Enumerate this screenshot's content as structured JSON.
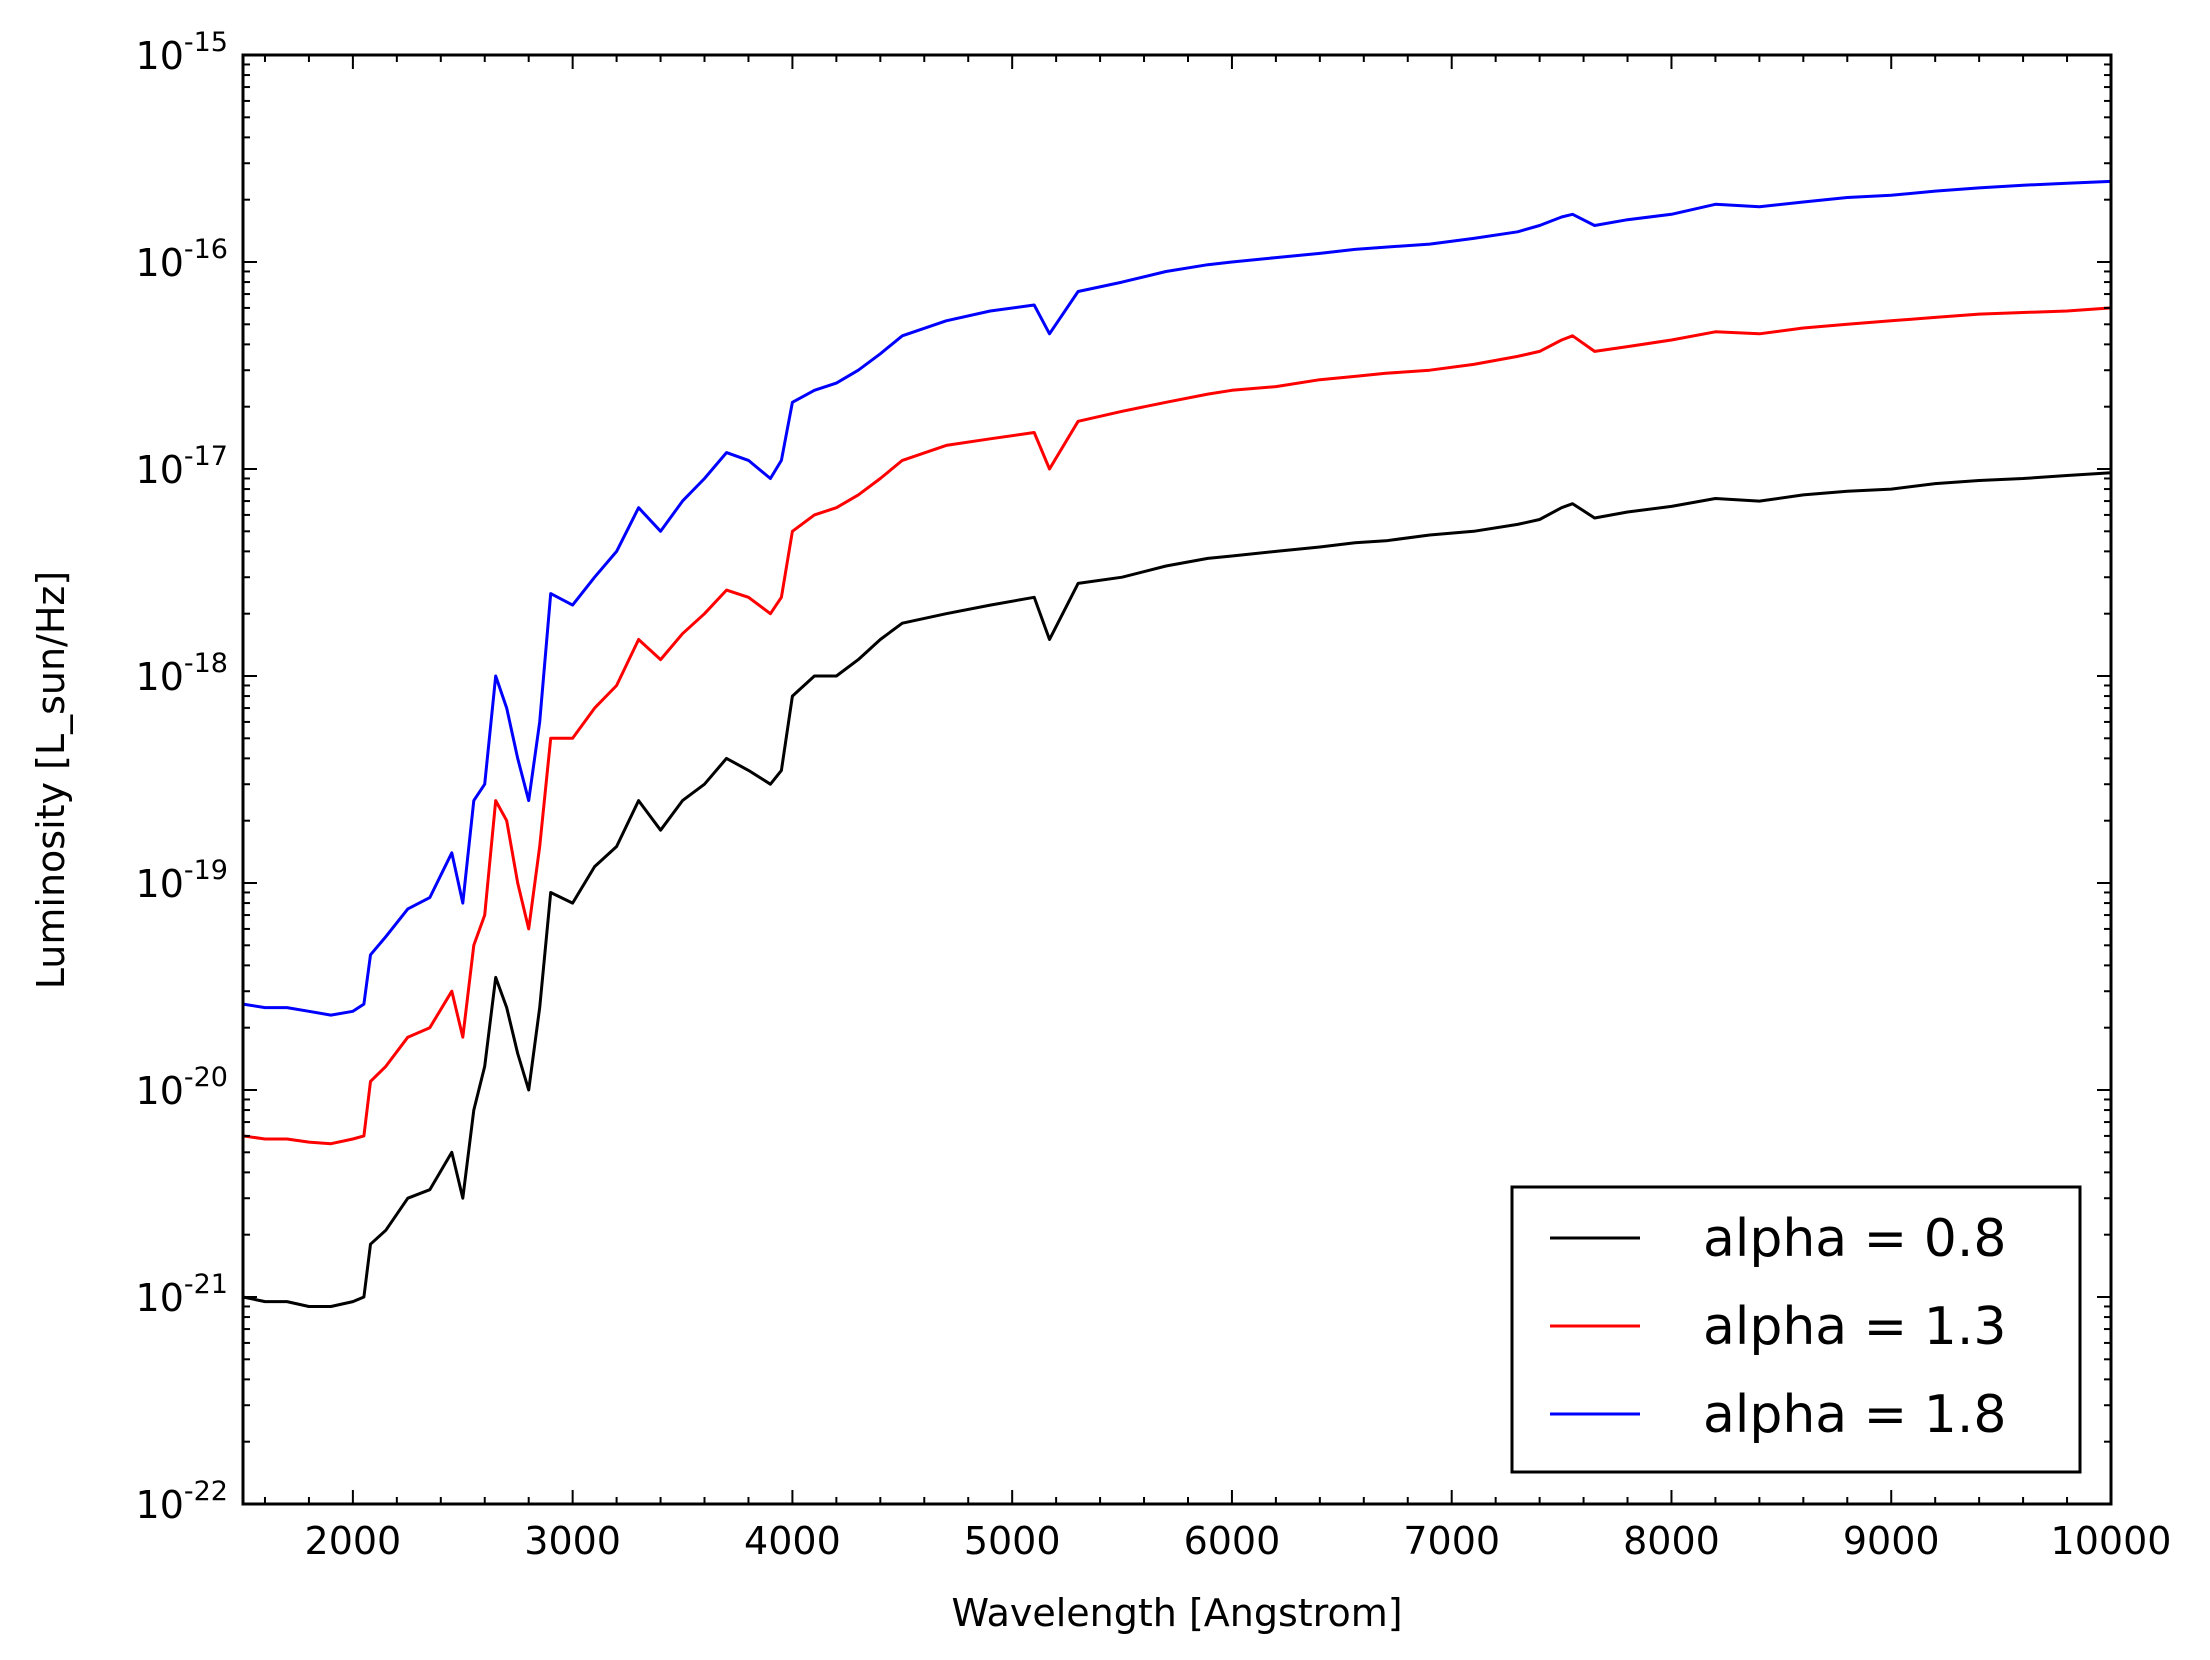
{
  "chart_data": {
    "type": "line",
    "xlabel": "Wavelength [Angstrom]",
    "ylabel": "Luminosity [L_sun/Hz]",
    "xlim": [
      1500,
      10000
    ],
    "ylim": [
      1e-22,
      1e-15
    ],
    "yscale": "log",
    "grid": false,
    "legend_position": "bottom-right",
    "x_ticks": [
      "2000",
      "3000",
      "4000",
      "5000",
      "6000",
      "7000",
      "8000",
      "9000",
      "10000"
    ],
    "y_ticks": [
      {
        "base": "10",
        "exp": "-22"
      },
      {
        "base": "10",
        "exp": "-21"
      },
      {
        "base": "10",
        "exp": "-20"
      },
      {
        "base": "10",
        "exp": "-19"
      },
      {
        "base": "10",
        "exp": "-18"
      },
      {
        "base": "10",
        "exp": "-17"
      },
      {
        "base": "10",
        "exp": "-16"
      },
      {
        "base": "10",
        "exp": "-15"
      }
    ],
    "series": [
      {
        "name": "alpha = 0.8",
        "color": "#000000",
        "x": [
          1500,
          1600,
          1700,
          1800,
          1900,
          2000,
          2050,
          2080,
          2150,
          2250,
          2350,
          2450,
          2500,
          2550,
          2600,
          2650,
          2700,
          2750,
          2800,
          2850,
          2900,
          3000,
          3100,
          3200,
          3300,
          3400,
          3500,
          3600,
          3700,
          3800,
          3900,
          3950,
          4000,
          4100,
          4200,
          4300,
          4400,
          4500,
          4700,
          4900,
          5100,
          5170,
          5300,
          5500,
          5700,
          5890,
          6000,
          6200,
          6400,
          6560,
          6700,
          6900,
          7100,
          7300,
          7400,
          7500,
          7550,
          7650,
          7800,
          8000,
          8200,
          8400,
          8600,
          8800,
          9000,
          9200,
          9400,
          9600,
          9800,
          10000
        ],
        "y": [
          1e-21,
          9.5e-22,
          9.5e-22,
          9e-22,
          9e-22,
          9.5e-22,
          1e-21,
          1.8e-21,
          2.1e-21,
          3e-21,
          3.3e-21,
          5e-21,
          3e-21,
          8e-21,
          1.3e-20,
          3.5e-20,
          2.5e-20,
          1.5e-20,
          1e-20,
          2.5e-20,
          9e-20,
          8e-20,
          1.2e-19,
          1.5e-19,
          2.5e-19,
          1.8e-19,
          2.5e-19,
          3e-19,
          4e-19,
          3.5e-19,
          3e-19,
          3.5e-19,
          8e-19,
          1e-18,
          1e-18,
          1.2e-18,
          1.5e-18,
          1.8e-18,
          2e-18,
          2.2e-18,
          2.4e-18,
          1.5e-18,
          2.8e-18,
          3e-18,
          3.4e-18,
          3.7e-18,
          3.8e-18,
          4e-18,
          4.2e-18,
          4.4e-18,
          4.5e-18,
          4.8e-18,
          5e-18,
          5.4e-18,
          5.7e-18,
          6.5e-18,
          6.8e-18,
          5.8e-18,
          6.2e-18,
          6.6e-18,
          7.2e-18,
          7e-18,
          7.5e-18,
          7.8e-18,
          8e-18,
          8.5e-18,
          8.8e-18,
          9e-18,
          9.3e-18,
          9.6e-18
        ]
      },
      {
        "name": "alpha = 1.3",
        "color": "#ff0000",
        "x": [
          1500,
          1600,
          1700,
          1800,
          1900,
          2000,
          2050,
          2080,
          2150,
          2250,
          2350,
          2450,
          2500,
          2550,
          2600,
          2650,
          2700,
          2750,
          2800,
          2850,
          2900,
          3000,
          3100,
          3200,
          3300,
          3400,
          3500,
          3600,
          3700,
          3800,
          3900,
          3950,
          4000,
          4100,
          4200,
          4300,
          4400,
          4500,
          4700,
          4900,
          5100,
          5170,
          5300,
          5500,
          5700,
          5890,
          6000,
          6200,
          6400,
          6560,
          6700,
          6900,
          7100,
          7300,
          7400,
          7500,
          7550,
          7650,
          7800,
          8000,
          8200,
          8400,
          8600,
          8800,
          9000,
          9200,
          9400,
          9600,
          9800,
          10000
        ],
        "y": [
          6e-21,
          5.8e-21,
          5.8e-21,
          5.6e-21,
          5.5e-21,
          5.8e-21,
          6e-21,
          1.1e-20,
          1.3e-20,
          1.8e-20,
          2e-20,
          3e-20,
          1.8e-20,
          5e-20,
          7e-20,
          2.5e-19,
          2e-19,
          1e-19,
          6e-20,
          1.5e-19,
          5e-19,
          5e-19,
          7e-19,
          9e-19,
          1.5e-18,
          1.2e-18,
          1.6e-18,
          2e-18,
          2.6e-18,
          2.4e-18,
          2e-18,
          2.4e-18,
          5e-18,
          6e-18,
          6.5e-18,
          7.5e-18,
          9e-18,
          1.1e-17,
          1.3e-17,
          1.4e-17,
          1.5e-17,
          1e-17,
          1.7e-17,
          1.9e-17,
          2.1e-17,
          2.3e-17,
          2.4e-17,
          2.5e-17,
          2.7e-17,
          2.8e-17,
          2.9e-17,
          3e-17,
          3.2e-17,
          3.5e-17,
          3.7e-17,
          4.2e-17,
          4.4e-17,
          3.7e-17,
          3.9e-17,
          4.2e-17,
          4.6e-17,
          4.5e-17,
          4.8e-17,
          5e-17,
          5.2e-17,
          5.4e-17,
          5.6e-17,
          5.7e-17,
          5.8e-17,
          6e-17
        ]
      },
      {
        "name": "alpha = 1.8",
        "color": "#0000ff",
        "x": [
          1500,
          1600,
          1700,
          1800,
          1900,
          2000,
          2050,
          2080,
          2150,
          2250,
          2350,
          2450,
          2500,
          2550,
          2600,
          2650,
          2700,
          2750,
          2800,
          2850,
          2900,
          3000,
          3100,
          3200,
          3300,
          3400,
          3500,
          3600,
          3700,
          3800,
          3900,
          3950,
          4000,
          4100,
          4200,
          4300,
          4400,
          4500,
          4700,
          4900,
          5100,
          5170,
          5300,
          5500,
          5700,
          5890,
          6000,
          6200,
          6400,
          6560,
          6700,
          6900,
          7100,
          7300,
          7400,
          7500,
          7550,
          7650,
          7800,
          8000,
          8200,
          8400,
          8600,
          8800,
          9000,
          9200,
          9400,
          9600,
          9800,
          10000
        ],
        "y": [
          2.6e-20,
          2.5e-20,
          2.5e-20,
          2.4e-20,
          2.3e-20,
          2.4e-20,
          2.6e-20,
          4.5e-20,
          5.5e-20,
          7.5e-20,
          8.5e-20,
          1.4e-19,
          8e-20,
          2.5e-19,
          3e-19,
          1e-18,
          7e-19,
          4e-19,
          2.5e-19,
          6e-19,
          2.5e-18,
          2.2e-18,
          3e-18,
          4e-18,
          6.5e-18,
          5e-18,
          7e-18,
          9e-18,
          1.2e-17,
          1.1e-17,
          9e-18,
          1.1e-17,
          2.1e-17,
          2.4e-17,
          2.6e-17,
          3e-17,
          3.6e-17,
          4.4e-17,
          5.2e-17,
          5.8e-17,
          6.2e-17,
          4.5e-17,
          7.2e-17,
          8e-17,
          9e-17,
          9.7e-17,
          1e-16,
          1.05e-16,
          1.1e-16,
          1.15e-16,
          1.18e-16,
          1.22e-16,
          1.3e-16,
          1.4e-16,
          1.5e-16,
          1.65e-16,
          1.7e-16,
          1.5e-16,
          1.6e-16,
          1.7e-16,
          1.9e-16,
          1.85e-16,
          1.95e-16,
          2.05e-16,
          2.1e-16,
          2.2e-16,
          2.28e-16,
          2.35e-16,
          2.4e-16,
          2.45e-16
        ]
      }
    ]
  }
}
